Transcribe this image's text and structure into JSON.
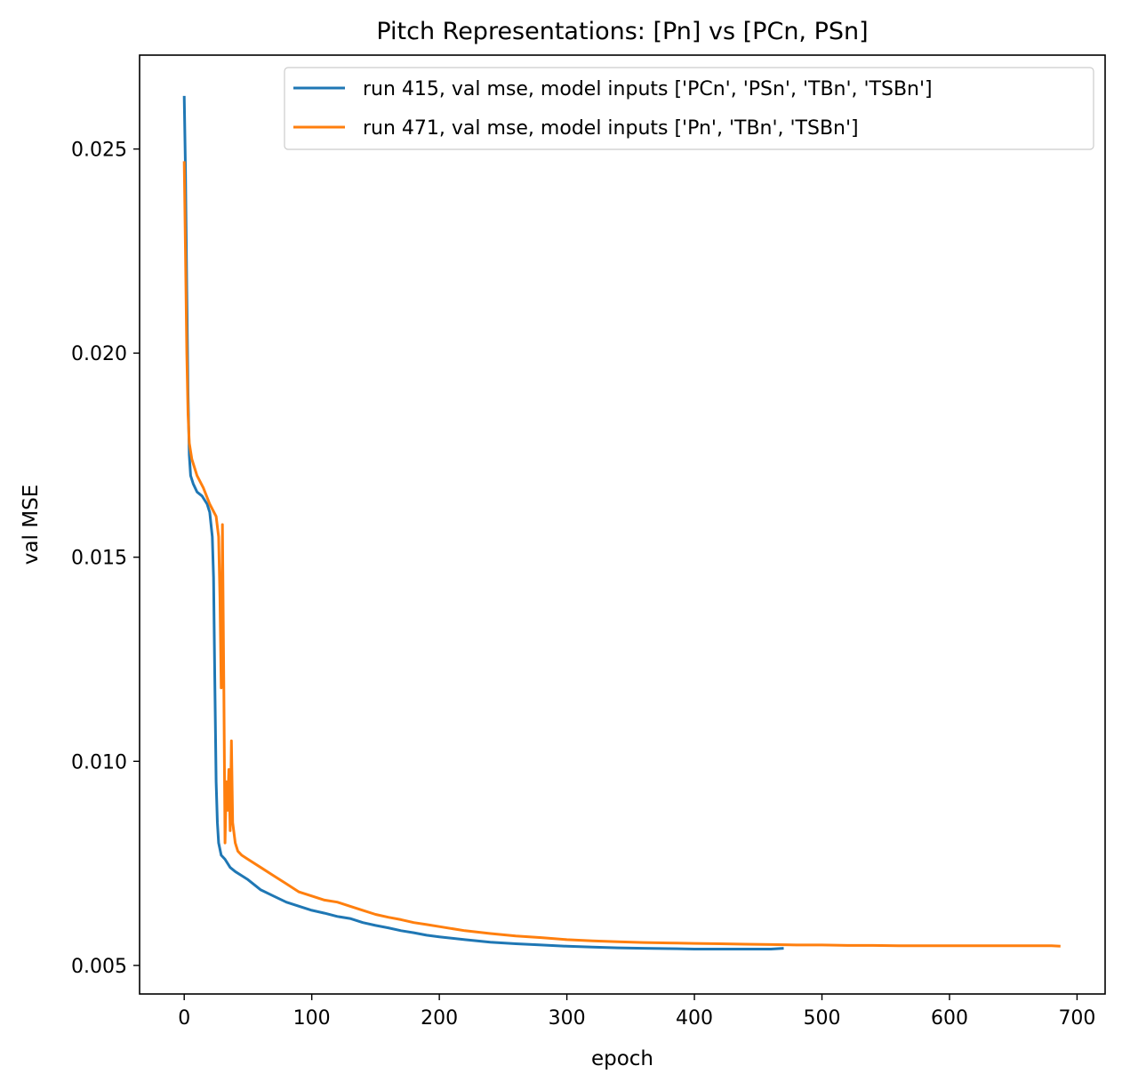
{
  "chart_data": {
    "type": "line",
    "title": "Pitch Representations: [Pn] vs [PCn, PSn]",
    "xlabel": "epoch",
    "ylabel": "val MSE",
    "xlim": [
      -35,
      722
    ],
    "ylim": [
      0.0043,
      0.0273
    ],
    "xticks": [
      0,
      100,
      200,
      300,
      400,
      500,
      600,
      700
    ],
    "xtick_labels": [
      "0",
      "100",
      "200",
      "300",
      "400",
      "500",
      "600",
      "700"
    ],
    "yticks": [
      0.005,
      0.01,
      0.015,
      0.02,
      0.025
    ],
    "ytick_labels": [
      "0.005",
      "0.010",
      "0.015",
      "0.020",
      "0.025"
    ],
    "grid": false,
    "legend_position": "top-right",
    "series": [
      {
        "name": "run 415, val mse, model inputs ['PCn', 'PSn', 'TBn', 'TSBn']",
        "color": "#1f77b4",
        "points": [
          [
            0,
            0.0263
          ],
          [
            1,
            0.0245
          ],
          [
            2,
            0.0215
          ],
          [
            3,
            0.019
          ],
          [
            4,
            0.0175
          ],
          [
            5,
            0.017
          ],
          [
            7,
            0.0168
          ],
          [
            10,
            0.0166
          ],
          [
            14,
            0.0165
          ],
          [
            18,
            0.0163
          ],
          [
            20,
            0.0161
          ],
          [
            22,
            0.0155
          ],
          [
            23,
            0.0145
          ],
          [
            24,
            0.012
          ],
          [
            25,
            0.0095
          ],
          [
            26,
            0.0085
          ],
          [
            27,
            0.008
          ],
          [
            29,
            0.0077
          ],
          [
            32,
            0.0076
          ],
          [
            36,
            0.0074
          ],
          [
            40,
            0.0073
          ],
          [
            45,
            0.0072
          ],
          [
            50,
            0.0071
          ],
          [
            60,
            0.00685
          ],
          [
            70,
            0.0067
          ],
          [
            80,
            0.00655
          ],
          [
            90,
            0.00645
          ],
          [
            100,
            0.00635
          ],
          [
            110,
            0.00628
          ],
          [
            120,
            0.0062
          ],
          [
            130,
            0.00615
          ],
          [
            140,
            0.00605
          ],
          [
            150,
            0.00598
          ],
          [
            160,
            0.00592
          ],
          [
            170,
            0.00585
          ],
          [
            180,
            0.0058
          ],
          [
            190,
            0.00574
          ],
          [
            200,
            0.0057
          ],
          [
            220,
            0.00563
          ],
          [
            240,
            0.00557
          ],
          [
            260,
            0.00553
          ],
          [
            280,
            0.0055
          ],
          [
            300,
            0.00547
          ],
          [
            320,
            0.00545
          ],
          [
            340,
            0.00543
          ],
          [
            360,
            0.00542
          ],
          [
            380,
            0.00541
          ],
          [
            400,
            0.0054
          ],
          [
            420,
            0.0054
          ],
          [
            440,
            0.0054
          ],
          [
            460,
            0.0054
          ],
          [
            470,
            0.00542
          ]
        ]
      },
      {
        "name": "run 471, val mse, model inputs ['Pn', 'TBn', 'TSBn']",
        "color": "#ff7f0e",
        "points": [
          [
            0,
            0.0247
          ],
          [
            1,
            0.0225
          ],
          [
            2,
            0.02
          ],
          [
            3,
            0.0185
          ],
          [
            4,
            0.0178
          ],
          [
            6,
            0.0174
          ],
          [
            10,
            0.017
          ],
          [
            15,
            0.0167
          ],
          [
            20,
            0.0163
          ],
          [
            25,
            0.016
          ],
          [
            27,
            0.0155
          ],
          [
            28,
            0.014
          ],
          [
            29,
            0.0118
          ],
          [
            30,
            0.0158
          ],
          [
            31,
            0.012
          ],
          [
            32,
            0.008
          ],
          [
            33,
            0.0095
          ],
          [
            34,
            0.0088
          ],
          [
            35,
            0.0098
          ],
          [
            36,
            0.0083
          ],
          [
            37,
            0.0105
          ],
          [
            38,
            0.0085
          ],
          [
            40,
            0.008
          ],
          [
            42,
            0.0078
          ],
          [
            45,
            0.0077
          ],
          [
            50,
            0.0076
          ],
          [
            60,
            0.0074
          ],
          [
            70,
            0.0072
          ],
          [
            80,
            0.007
          ],
          [
            90,
            0.0068
          ],
          [
            100,
            0.0067
          ],
          [
            110,
            0.0066
          ],
          [
            120,
            0.00655
          ],
          [
            130,
            0.00645
          ],
          [
            140,
            0.00635
          ],
          [
            150,
            0.00625
          ],
          [
            160,
            0.00618
          ],
          [
            170,
            0.00612
          ],
          [
            180,
            0.00605
          ],
          [
            190,
            0.006
          ],
          [
            200,
            0.00595
          ],
          [
            220,
            0.00585
          ],
          [
            240,
            0.00578
          ],
          [
            260,
            0.00572
          ],
          [
            280,
            0.00568
          ],
          [
            300,
            0.00563
          ],
          [
            320,
            0.0056
          ],
          [
            340,
            0.00558
          ],
          [
            360,
            0.00556
          ],
          [
            380,
            0.00555
          ],
          [
            400,
            0.00554
          ],
          [
            420,
            0.00553
          ],
          [
            440,
            0.00552
          ],
          [
            460,
            0.00551
          ],
          [
            480,
            0.0055
          ],
          [
            500,
            0.0055
          ],
          [
            520,
            0.00549
          ],
          [
            540,
            0.00549
          ],
          [
            560,
            0.00548
          ],
          [
            580,
            0.00548
          ],
          [
            600,
            0.00548
          ],
          [
            620,
            0.00548
          ],
          [
            640,
            0.00548
          ],
          [
            660,
            0.00548
          ],
          [
            680,
            0.00548
          ],
          [
            687,
            0.00547
          ]
        ]
      }
    ]
  }
}
